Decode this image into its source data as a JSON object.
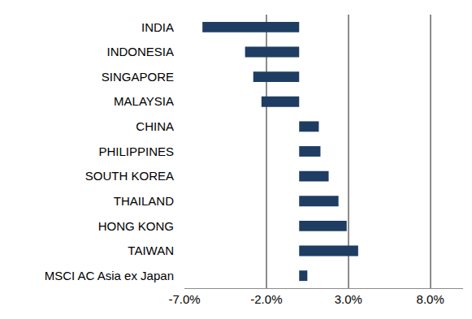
{
  "chart_data": {
    "type": "bar",
    "orientation": "horizontal",
    "categories": [
      "INDIA",
      "INDONESIA",
      "SINGAPORE",
      "MALAYSIA",
      "CHINA",
      "PHILIPPINES",
      "SOUTH KOREA",
      "THAILAND",
      "HONG KONG",
      "TAIWAN",
      "MSCI AC Asia ex Japan"
    ],
    "values": [
      -5.9,
      -3.3,
      -2.8,
      -2.3,
      1.2,
      1.3,
      1.8,
      2.4,
      2.9,
      3.6,
      0.5
    ],
    "color": "#1f3d63",
    "xlim": [
      -7,
      10
    ],
    "xticks": [
      {
        "value": -7,
        "label": "-7.0%"
      },
      {
        "value": -2,
        "label": "-2.0%"
      },
      {
        "value": 3,
        "label": "3.0%"
      },
      {
        "value": 8,
        "label": "8.0%"
      }
    ],
    "grid": true
  }
}
